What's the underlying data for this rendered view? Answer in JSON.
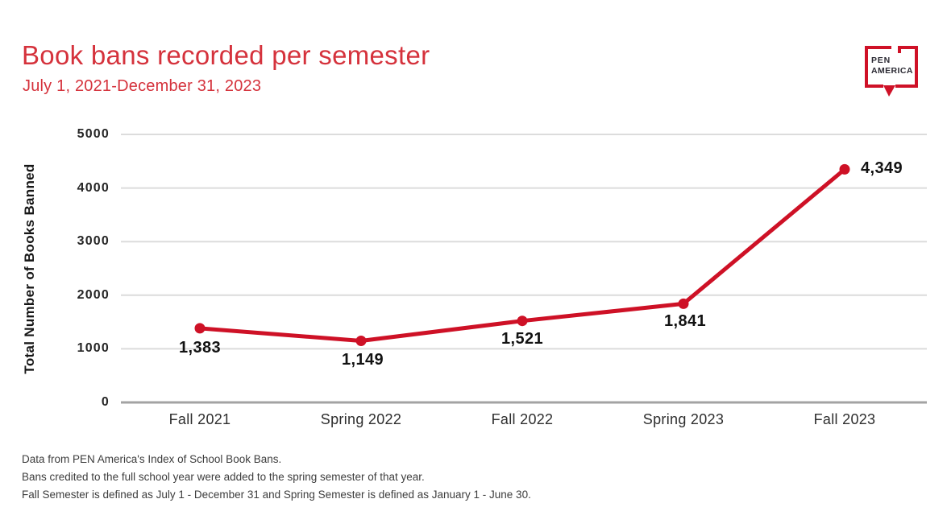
{
  "header": {
    "title": "Book bans recorded per semester",
    "subtitle": "July 1, 2021-December 31, 2023"
  },
  "logo": {
    "line1": "PEN",
    "line2": "AMERICA"
  },
  "colors": {
    "title_red": "#d5323c",
    "line_red": "#ce1126",
    "logo_red": "#cf1127",
    "grid_gray": "#dcdcdc",
    "axis_gray": "#a3a3a3",
    "label_black": "#121212"
  },
  "chart_data": {
    "type": "line",
    "title": "Book bans recorded per semester",
    "subtitle": "July 1, 2021-December 31, 2023",
    "categories": [
      "Fall 2021",
      "Spring 2022",
      "Fall 2022",
      "Spring 2023",
      "Fall 2023"
    ],
    "values": [
      1383,
      1149,
      1521,
      1841,
      4349
    ],
    "value_labels": [
      "1,383",
      "1,149",
      "1,521",
      "1,841",
      "4,349"
    ],
    "series_name": "Book bans recorded",
    "xlabel": "",
    "ylabel": "Total Number of Books Banned",
    "ylim": [
      0,
      5000
    ],
    "yticks": [
      0,
      1000,
      2000,
      3000,
      4000,
      5000
    ],
    "grid": true,
    "legend": false,
    "line_color": "#ce1126",
    "marker": "circle"
  },
  "footnotes": [
    "Data from PEN America's Index of School Book Bans.",
    "Bans credited to the full school year were added to the spring semester of that year.",
    "Fall Semester is defined as July 1 - December 31 and Spring Semester is defined as January 1 - June 30."
  ]
}
